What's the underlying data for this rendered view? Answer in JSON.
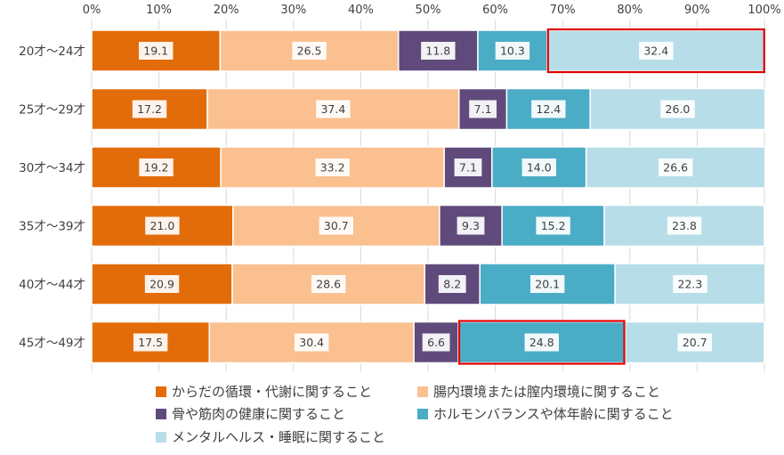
{
  "chart_data": {
    "type": "bar",
    "orientation": "horizontal",
    "stacked": true,
    "percent_stacked": true,
    "categories": [
      "20才〜24才",
      "25才〜29才",
      "30才〜34才",
      "35才〜39才",
      "40才〜44才",
      "45才〜49才"
    ],
    "x_ticks": [
      "0%",
      "10%",
      "20%",
      "30%",
      "40%",
      "50%",
      "60%",
      "70%",
      "80%",
      "90%",
      "100%"
    ],
    "xlim": [
      0,
      100
    ],
    "x_axis_position": "top",
    "grid": true,
    "legend_position": "bottom",
    "series": [
      {
        "name": "からだの循環・代謝に関すること",
        "color": "#E36C0A",
        "values": [
          19.1,
          17.2,
          19.2,
          21.0,
          20.9,
          17.5
        ],
        "labels": [
          "19.1",
          "17.2",
          "19.2",
          "21.0",
          "20.9",
          "17.5"
        ]
      },
      {
        "name": "腸内環境または膣内環境に関すること",
        "color": "#FAC090",
        "values": [
          26.5,
          37.4,
          33.2,
          30.7,
          28.6,
          30.4
        ],
        "labels": [
          "26.5",
          "37.4",
          "33.2",
          "30.7",
          "28.6",
          "30.4"
        ]
      },
      {
        "name": "骨や筋肉の健康に関すること",
        "color": "#604A7B",
        "values": [
          11.8,
          7.1,
          7.1,
          9.3,
          8.2,
          6.6
        ],
        "labels": [
          "11.8",
          "7.1",
          "7.1",
          "9.3",
          "8.2",
          "6.6"
        ]
      },
      {
        "name": "ホルモンバランスや体年齢に関すること",
        "color": "#4BACC6",
        "values": [
          10.3,
          12.4,
          14.0,
          15.2,
          20.1,
          24.8
        ],
        "labels": [
          "10.3",
          "12.4",
          "14.0",
          "15.2",
          "20.1",
          "24.8"
        ]
      },
      {
        "name": "メンタルヘルス・睡眠に関すること",
        "color": "#B7DEE8",
        "values": [
          32.4,
          26.0,
          26.6,
          23.8,
          22.3,
          20.7
        ],
        "labels": [
          "32.4",
          "26.0",
          "26.6",
          "23.8",
          "22.3",
          "20.7"
        ]
      }
    ],
    "highlights": [
      {
        "category_index": 0,
        "series_index": 4,
        "color": "#E00000"
      },
      {
        "category_index": 5,
        "series_index": 3,
        "color": "#E00000"
      }
    ]
  }
}
